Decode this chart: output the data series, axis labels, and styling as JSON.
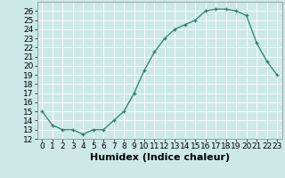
{
  "x": [
    0,
    1,
    2,
    3,
    4,
    5,
    6,
    7,
    8,
    9,
    10,
    11,
    12,
    13,
    14,
    15,
    16,
    17,
    18,
    19,
    20,
    21,
    22,
    23
  ],
  "y": [
    15.0,
    13.5,
    13.0,
    13.0,
    12.5,
    13.0,
    13.0,
    14.0,
    15.0,
    17.0,
    19.5,
    21.5,
    23.0,
    24.0,
    24.5,
    25.0,
    26.0,
    26.2,
    26.2,
    26.0,
    25.5,
    22.5,
    20.5,
    19.0
  ],
  "xlabel": "Humidex (Indice chaleur)",
  "xlim": [
    -0.5,
    23.5
  ],
  "ylim": [
    12,
    27
  ],
  "yticks": [
    12,
    13,
    14,
    15,
    16,
    17,
    18,
    19,
    20,
    21,
    22,
    23,
    24,
    25,
    26
  ],
  "xticks": [
    0,
    1,
    2,
    3,
    4,
    5,
    6,
    7,
    8,
    9,
    10,
    11,
    12,
    13,
    14,
    15,
    16,
    17,
    18,
    19,
    20,
    21,
    22,
    23
  ],
  "line_color": "#2e7d6e",
  "bg_color": "#cce9e7",
  "grid_color": "#ffffff",
  "tick_fontsize": 6.5,
  "xlabel_fontsize": 8
}
